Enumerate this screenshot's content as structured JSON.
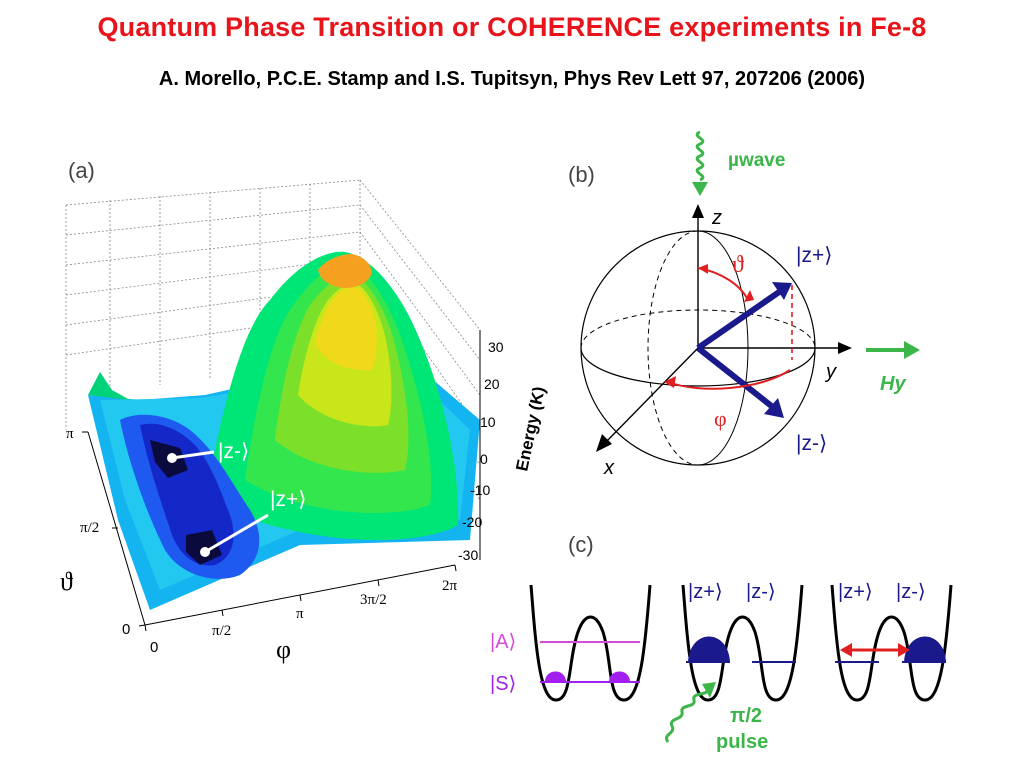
{
  "slide": {
    "title": "Quantum Phase Transition or COHERENCE experiments in Fe-8",
    "citation": "A. Morello, P.C.E. Stamp and I.S. Tupitsyn, Phys Rev Lett 97, 207206  (2006)"
  },
  "panel_a": {
    "label": "(a)",
    "energy_axis_label": "Energy  (K)",
    "energy_ticks": [
      "30",
      "20",
      "10",
      "0",
      "-10",
      "-20",
      "-30"
    ],
    "theta_symbol": "ϑ",
    "theta_ticks": [
      "π",
      "π/2",
      "0"
    ],
    "phi_symbol": "φ",
    "phi_ticks": [
      "0",
      "π/2",
      "π",
      "3π/2",
      "2π"
    ],
    "state_zminus": "|z-⟩",
    "state_zplus": "|z+⟩"
  },
  "panel_b": {
    "label": "(b)",
    "microwave": "µwave",
    "axis_z": "z",
    "axis_y": "y",
    "axis_x": "x",
    "theta": "ϑ",
    "phi": "φ",
    "state_zplus": "|z+⟩",
    "state_zminus": "|z-⟩",
    "field": "Hy"
  },
  "panel_c": {
    "label": "(c)",
    "state_A": "|A⟩",
    "state_S": "|S⟩",
    "zplus_1": "|z+⟩",
    "zminus_1": "|z-⟩",
    "zplus_2": "|z+⟩",
    "zminus_2": "|z-⟩",
    "pulse_line1": "π/2",
    "pulse_line2": "pulse"
  },
  "colors": {
    "title": "#e8141b",
    "accent_green": "#3cb54a",
    "navy": "#1a1a8c",
    "red": "#e02020",
    "purple": "#a020f0",
    "magenta": "#d64bd6"
  }
}
